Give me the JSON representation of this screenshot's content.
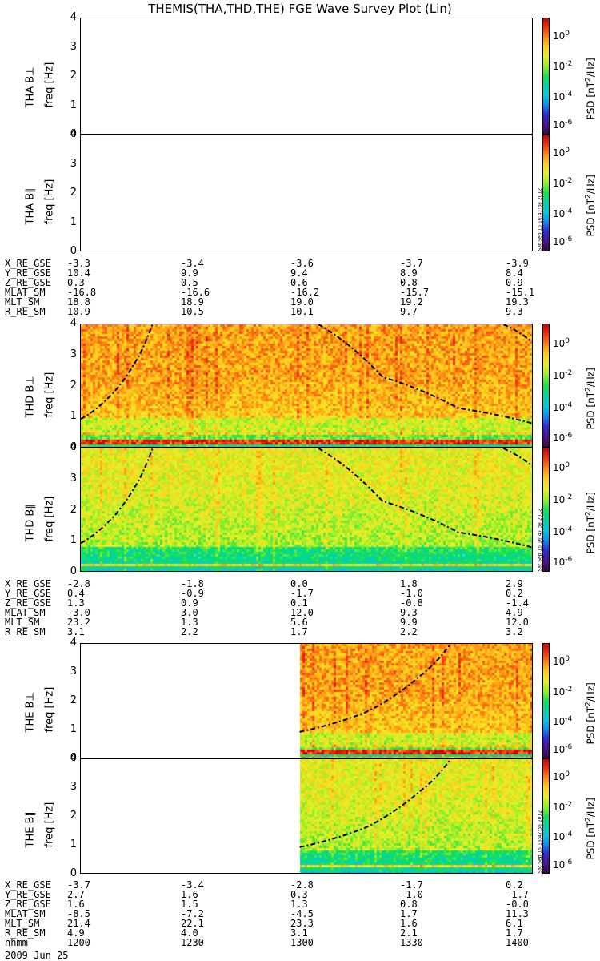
{
  "title": "THEMIS(THA,THD,THE) FGE Wave Survey Plot (Lin)",
  "colors": {
    "colorbar": [
      "#3a0a40",
      "#4b0f8a",
      "#2b2bd8",
      "#0a8cf0",
      "#00c8e0",
      "#00d6a0",
      "#16e050",
      "#8ef02a",
      "#e8f028",
      "#ffd21c",
      "#ff8c14",
      "#f03010",
      "#c80000"
    ]
  },
  "panels": [
    {
      "id": "tha-bperp",
      "label": "THA B⊥",
      "freq_label": "freq [Hz]",
      "has_data": false,
      "data_start_fraction": null,
      "curves": []
    },
    {
      "id": "tha-bpar",
      "label": "THA B∥",
      "freq_label": "freq [Hz]",
      "has_data": false,
      "data_start_fraction": null,
      "curves": []
    },
    {
      "id": "thd-bperp",
      "label": "THD B⊥",
      "freq_label": "freq [Hz]",
      "has_data": true,
      "data_start_fraction": 0,
      "curves": [
        "d1",
        "d2",
        "d3"
      ]
    },
    {
      "id": "thd-bpar",
      "label": "THD B∥",
      "freq_label": "freq [Hz]",
      "has_data": true,
      "data_start_fraction": 0,
      "curves": [
        "d1",
        "d2",
        "d3"
      ]
    },
    {
      "id": "the-bperp",
      "label": "THE B⊥",
      "freq_label": "freq [Hz]",
      "has_data": true,
      "data_start_fraction": 0.484,
      "curves": [
        "e1"
      ]
    },
    {
      "id": "the-bpar",
      "label": "THE B∥",
      "freq_label": "freq [Hz]",
      "has_data": true,
      "data_start_fraction": 0.484,
      "curves": [
        "e1"
      ]
    }
  ],
  "colorbar": {
    "label_main": "PSD [nT",
    "label_sup": "2",
    "label_end": "/Hz]",
    "ticks": [
      {
        "base": "10",
        "exp": "0"
      },
      {
        "base": "10",
        "exp": "-2"
      },
      {
        "base": "10",
        "exp": "-4"
      },
      {
        "base": "10",
        "exp": "-6"
      }
    ]
  },
  "stamp": "Sat Sep 15 16:47:38 2012",
  "orbit_blocks": [
    {
      "rows": [
        {
          "label": "X_RE_GSE",
          "values": [
            "-3.3",
            "-3.4",
            "-3.6",
            "-3.7",
            "-3.9"
          ]
        },
        {
          "label": "Y_RE_GSE",
          "values": [
            "10.4",
            "9.9",
            "9.4",
            "8.9",
            "8.4"
          ]
        },
        {
          "label": "Z_RE_GSE",
          "values": [
            "0.3",
            "0.5",
            "0.6",
            "0.8",
            "0.9"
          ]
        },
        {
          "label": "MLAT_SM",
          "values": [
            "-16.8",
            "-16.6",
            "-16.2",
            "-15.7",
            "-15.1"
          ]
        },
        {
          "label": "MLT_SM",
          "values": [
            "18.8",
            "18.9",
            "19.0",
            "19.2",
            "19.3"
          ]
        },
        {
          "label": "R_RE_SM",
          "values": [
            "10.9",
            "10.5",
            "10.1",
            "9.7",
            "9.3"
          ]
        }
      ]
    },
    {
      "rows": [
        {
          "label": "X_RE_GSE",
          "values": [
            "-2.8",
            "-1.8",
            "0.0",
            "1.8",
            "2.9"
          ]
        },
        {
          "label": "Y_RE_GSE",
          "values": [
            "0.4",
            "-0.9",
            "-1.7",
            "-1.0",
            "0.2"
          ]
        },
        {
          "label": "Z_RE_GSE",
          "values": [
            "1.3",
            "0.9",
            "0.1",
            "-0.8",
            "-1.4"
          ]
        },
        {
          "label": "MLAT_SM",
          "values": [
            "-3.0",
            "3.0",
            "12.0",
            "9.3",
            "4.9"
          ]
        },
        {
          "label": "MLT_SM",
          "values": [
            "23.2",
            "1.3",
            "5.6",
            "9.9",
            "12.0"
          ]
        },
        {
          "label": "R_RE_SM",
          "values": [
            "3.1",
            "2.2",
            "1.7",
            "2.2",
            "3.2"
          ]
        }
      ]
    },
    {
      "rows": [
        {
          "label": "X_RE_GSE",
          "values": [
            "-3.7",
            "-3.4",
            "-2.8",
            "-1.7",
            "0.2"
          ]
        },
        {
          "label": "Y_RE_GSE",
          "values": [
            "2.7",
            "1.6",
            "0.3",
            "-1.0",
            "-1.7"
          ]
        },
        {
          "label": "Z_RE_GSE",
          "values": [
            "1.6",
            "1.5",
            "1.3",
            "0.8",
            "-0.0"
          ]
        },
        {
          "label": "MLAT_SM",
          "values": [
            "-8.5",
            "-7.2",
            "-4.5",
            "1.7",
            "11.3"
          ]
        },
        {
          "label": "MLT_SM",
          "values": [
            "21.4",
            "22.1",
            "23.3",
            "1.6",
            "6.1"
          ]
        },
        {
          "label": "R_RE_SM",
          "values": [
            "4.9",
            "4.0",
            "3.1",
            "2.1",
            "1.7"
          ]
        },
        {
          "label": "hhmm",
          "values": [
            "1200",
            "1230",
            "1300",
            "1330",
            "1400"
          ]
        }
      ]
    }
  ],
  "date_label": "2009 Jun 25",
  "chart_data": {
    "type": "heatmap",
    "title": "THEMIS(THA,THD,THE) FGE Wave Survey Plot (Lin)",
    "x_tick_labels": [
      "1200",
      "1230",
      "1300",
      "1330",
      "1400"
    ],
    "x_label": "hhmm",
    "date": "2009 Jun 25",
    "ylabel": "freq [Hz]",
    "ylim": [
      0,
      4
    ],
    "y_ticks": [
      "0",
      "1",
      "2",
      "3",
      "4"
    ],
    "colorbar_label": "PSD [nT^2/Hz]",
    "colorbar_ticks": [
      "10^0",
      "10^-2",
      "10^-4",
      "10^-6"
    ],
    "colorbar_scale": "log",
    "series": [
      {
        "name": "THA B⊥",
        "data": "none"
      },
      {
        "name": "THA B∥",
        "data": "none"
      },
      {
        "name": "THD B⊥",
        "data_start": "1200"
      },
      {
        "name": "THD B∥",
        "data_start": "1200"
      },
      {
        "name": "THE B⊥",
        "data_start": "1258"
      },
      {
        "name": "THE B∥",
        "data_start": "1258"
      }
    ],
    "overlay_curves": [
      {
        "panels": "THD",
        "x": [
          "1200",
          "1207",
          "1214",
          "1219"
        ],
        "y": [
          0.95,
          1.6,
          2.7,
          4.0
        ]
      },
      {
        "panels": "THD",
        "x": [
          "1303",
          "1320",
          "1340",
          "1400"
        ],
        "y": [
          4.0,
          2.3,
          1.3,
          0.8
        ]
      },
      {
        "panels": "THD",
        "x": [
          "1352",
          "1400"
        ],
        "y": [
          4.0,
          3.4
        ]
      },
      {
        "panels": "THE",
        "x": [
          "1258",
          "1315",
          "1330",
          "1338"
        ],
        "y": [
          0.95,
          1.6,
          2.9,
          4.0
        ]
      }
    ]
  }
}
